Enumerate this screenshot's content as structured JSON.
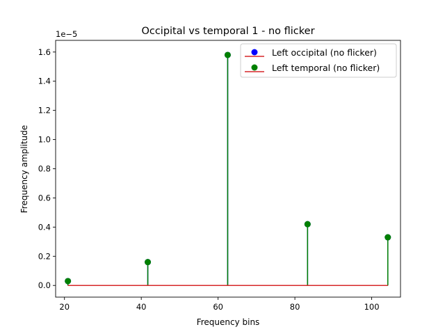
{
  "chart_data": {
    "type": "stem",
    "title": "Occipital vs temporal 1 - no flicker",
    "xlabel": "Frequency bins",
    "ylabel": "Frequency amplitude",
    "y_multiplier_label": "1e−5",
    "xlim": [
      17.7,
      107.5
    ],
    "ylim": [
      -8e-07,
      1.68e-05
    ],
    "xticks": [
      20,
      40,
      60,
      80,
      100
    ],
    "xtick_labels": [
      "20",
      "40",
      "60",
      "80",
      "100"
    ],
    "yticks": [
      0,
      2e-06,
      4e-06,
      6e-06,
      8e-06,
      1e-05,
      1.2e-05,
      1.4e-05,
      1.6e-05
    ],
    "ytick_labels": [
      "0.0",
      "0.2",
      "0.4",
      "0.6",
      "0.8",
      "1.0",
      "1.2",
      "1.4",
      "1.6"
    ],
    "grid": false,
    "legend_position": "top-right",
    "baseline": 0,
    "baseline_x_range": [
      20.9,
      104.2
    ],
    "series": [
      {
        "name": "Left occipital (no flicker)",
        "marker_color": "#0000ff",
        "stem_color": "#0000ff",
        "baseline_color": "#d62728",
        "x": [
          20.9,
          41.7,
          62.5,
          83.3,
          104.2
        ],
        "values": [
          3e-07,
          1.6e-06,
          1.58e-05,
          4.2e-06,
          3.3e-06
        ]
      },
      {
        "name": "Left temporal (no flicker)",
        "marker_color": "#008000",
        "stem_color": "#008000",
        "baseline_color": "#d62728",
        "x": [
          20.9,
          41.7,
          62.5,
          83.3,
          104.2
        ],
        "values": [
          3e-07,
          1.6e-06,
          1.58e-05,
          4.2e-06,
          3.3e-06
        ]
      }
    ]
  }
}
